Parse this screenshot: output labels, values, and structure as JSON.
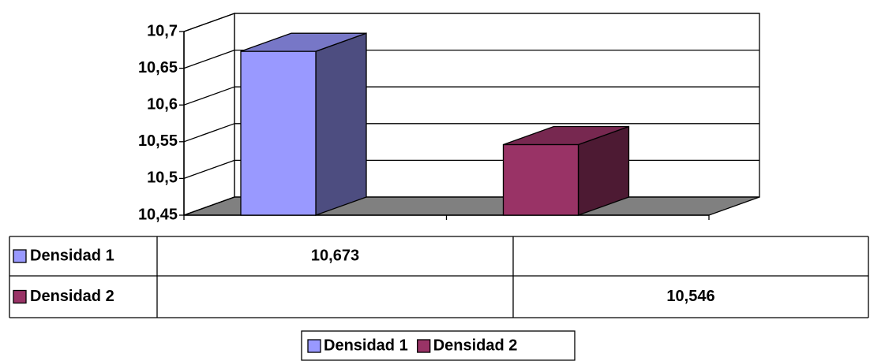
{
  "chart_data": {
    "type": "bar3d",
    "categories": [
      null,
      null
    ],
    "series": [
      {
        "name": "Densidad 1",
        "color": "#9999ff",
        "values": [
          10.673,
          null
        ],
        "value_labels": [
          "10,673",
          null
        ]
      },
      {
        "name": "Densidad 2",
        "color": "#993366",
        "values": [
          null,
          10.546
        ],
        "value_labels": [
          null,
          "10,546"
        ]
      }
    ],
    "ylim": [
      10.45,
      10.7
    ],
    "yticks": [
      {
        "value": 10.45,
        "label": "10,45"
      },
      {
        "value": 10.5,
        "label": "10,5"
      },
      {
        "value": 10.55,
        "label": "10,55"
      },
      {
        "value": 10.6,
        "label": "10,6"
      },
      {
        "value": 10.65,
        "label": "10,65"
      },
      {
        "value": 10.7,
        "label": "10,7"
      }
    ],
    "grid": true,
    "legend": "bottom",
    "data_table": true
  }
}
